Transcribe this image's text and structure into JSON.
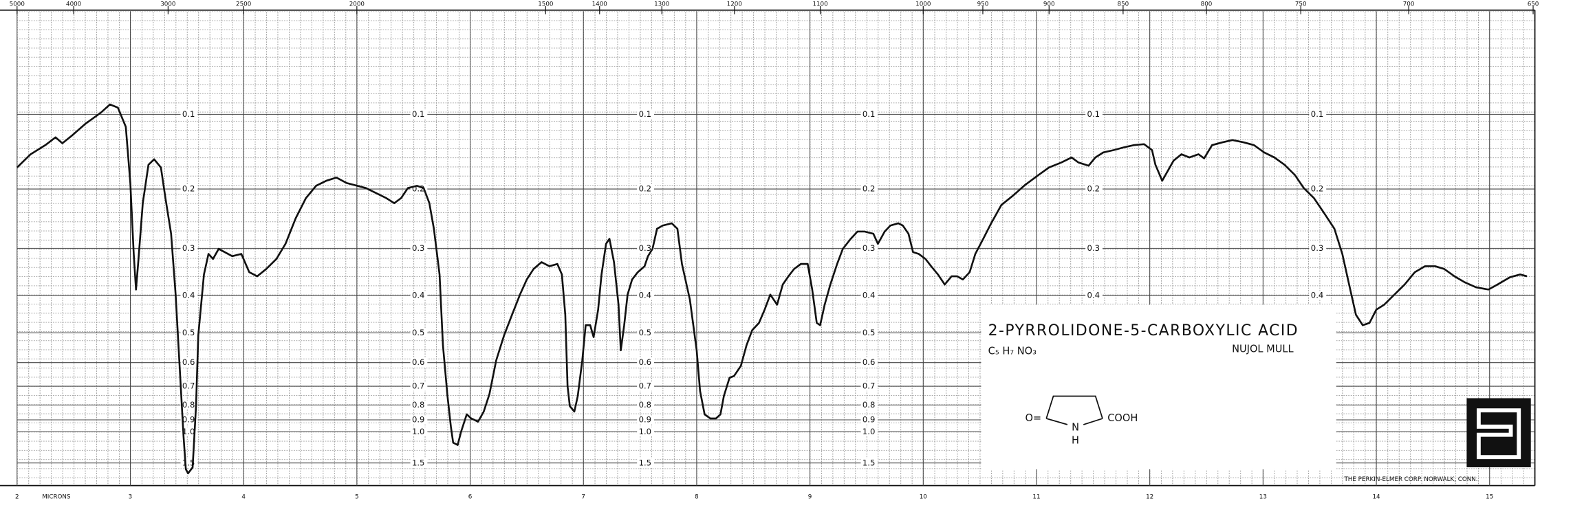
{
  "chart_data": {
    "type": "line",
    "title": "2-PYRROLIDONE-5-CARBOXYLIC ACID",
    "formula": "C₅ H₇ NO₃",
    "medium": "NUJOL MULL",
    "structure": {
      "carbonyl": "O=",
      "nitrogen": "N",
      "hydrogen": "H",
      "acid": "COOH"
    },
    "xlabel": "MICRONS",
    "credit": "THE PERKIN-ELMER CORP. NORWALK, CONN.",
    "color": "#111111",
    "grid": true,
    "xlim": [
      2,
      15.4
    ],
    "xticks": [
      2,
      3,
      4,
      5,
      6,
      7,
      8,
      9,
      10,
      11,
      12,
      13,
      14,
      15
    ],
    "x2scale": "wavenumber",
    "x2ticks": [
      5000,
      4000,
      3000,
      2500,
      2000,
      1500,
      1400,
      1300,
      1200,
      1100,
      1000,
      950,
      900,
      850,
      800,
      750,
      700,
      650
    ],
    "ylim": [
      0,
      100
    ],
    "y2scale": "absorbance",
    "y2ticks": [
      0.1,
      0.2,
      0.3,
      0.4,
      0.5,
      0.6,
      0.7,
      0.8,
      0.9,
      {
        "value": 1,
        "label": "1.0"
      },
      1.5
    ],
    "x": [
      2.0,
      2.12,
      2.25,
      2.34,
      2.4,
      2.49,
      2.6,
      2.74,
      2.82,
      2.89,
      2.96,
      3.0,
      3.03,
      3.05,
      3.07,
      3.11,
      3.16,
      3.21,
      3.27,
      3.31,
      3.36,
      3.4,
      3.44,
      3.47,
      3.49,
      3.51,
      3.55,
      3.58,
      3.6,
      3.65,
      3.69,
      3.73,
      3.78,
      3.9,
      3.98,
      4.05,
      4.12,
      4.2,
      4.29,
      4.37,
      4.46,
      4.55,
      4.64,
      4.73,
      4.82,
      4.91,
      5.08,
      5.26,
      5.33,
      5.39,
      5.45,
      5.53,
      5.59,
      5.64,
      5.68,
      5.73,
      5.76,
      5.8,
      5.83,
      5.85,
      5.89,
      5.92,
      5.97,
      6.01,
      6.07,
      6.12,
      6.17,
      6.23,
      6.3,
      6.37,
      6.44,
      6.5,
      6.56,
      6.63,
      6.7,
      6.77,
      6.81,
      6.84,
      6.86,
      6.88,
      6.92,
      6.95,
      6.99,
      7.02,
      7.06,
      7.09,
      7.13,
      7.16,
      7.2,
      7.23,
      7.27,
      7.31,
      7.33,
      7.36,
      7.39,
      7.43,
      7.48,
      7.54,
      7.57,
      7.61,
      7.65,
      7.7,
      7.78,
      7.83,
      7.87,
      7.94,
      8.0,
      8.03,
      8.07,
      8.12,
      8.17,
      8.21,
      8.24,
      8.29,
      8.33,
      8.39,
      8.44,
      8.49,
      8.55,
      8.6,
      8.65,
      8.71,
      8.76,
      8.81,
      8.86,
      8.92,
      8.98,
      9.02,
      9.06,
      9.09,
      9.13,
      9.18,
      9.24,
      9.29,
      9.36,
      9.42,
      9.48,
      9.56,
      9.6,
      9.66,
      9.71,
      9.78,
      9.82,
      9.87,
      9.91,
      9.96,
      10.02,
      10.07,
      10.13,
      10.19,
      10.25,
      10.3,
      10.35,
      10.41,
      10.46,
      10.53,
      10.6,
      10.69,
      10.8,
      10.9,
      11.02,
      11.11,
      11.22,
      11.31,
      11.37,
      11.46,
      11.52,
      11.59,
      11.68,
      11.77,
      11.86,
      11.95,
      12.02,
      12.05,
      12.11,
      12.16,
      12.21,
      12.28,
      12.35,
      12.43,
      12.48,
      12.55,
      12.64,
      12.73,
      12.83,
      12.92,
      13.01,
      13.1,
      13.19,
      13.28,
      13.36,
      13.45,
      13.54,
      13.63,
      13.7,
      13.76,
      13.82,
      13.88,
      13.94,
      14.0,
      14.07,
      14.16,
      14.25,
      14.34,
      14.43,
      14.52,
      14.6,
      14.69,
      14.78,
      14.88,
      14.99,
      15.07,
      15.18,
      15.27,
      15.33
    ],
    "values": [
      67.8,
      70.7,
      72.7,
      74.4,
      73.1,
      74.9,
      77.3,
      79.8,
      81.6,
      80.9,
      76.7,
      64.4,
      48.9,
      41.1,
      47.1,
      60.0,
      68.4,
      69.6,
      67.8,
      61.1,
      53.3,
      40.0,
      22.2,
      8.9,
      1.8,
      0.9,
      2.2,
      15.6,
      31.1,
      44.4,
      48.9,
      47.8,
      50.0,
      48.4,
      48.9,
      44.9,
      44.0,
      45.6,
      47.8,
      51.1,
      56.7,
      61.1,
      63.8,
      64.9,
      65.6,
      64.4,
      63.3,
      61.1,
      60.0,
      61.1,
      63.3,
      63.8,
      63.3,
      60.0,
      54.4,
      44.4,
      28.9,
      17.8,
      11.1,
      7.6,
      7.1,
      10.0,
      13.8,
      12.9,
      12.2,
      14.4,
      18.2,
      25.6,
      31.1,
      35.6,
      40.0,
      43.3,
      45.6,
      47.1,
      46.2,
      46.7,
      44.4,
      35.6,
      20.0,
      15.6,
      14.4,
      17.8,
      25.6,
      33.3,
      33.3,
      30.7,
      36.7,
      44.4,
      51.1,
      52.2,
      47.1,
      37.8,
      27.8,
      33.3,
      40.0,
      43.3,
      44.9,
      46.2,
      48.4,
      50.0,
      54.4,
      55.1,
      55.6,
      54.4,
      46.7,
      38.9,
      27.8,
      18.9,
      13.8,
      12.9,
      12.9,
      13.8,
      17.8,
      21.8,
      22.2,
      24.4,
      28.9,
      32.2,
      33.8,
      36.7,
      40.0,
      37.8,
      42.2,
      44.0,
      45.6,
      46.7,
      46.7,
      41.1,
      33.8,
      33.3,
      37.8,
      42.2,
      46.7,
      50.0,
      52.2,
      53.8,
      53.8,
      53.3,
      51.1,
      53.8,
      55.1,
      55.6,
      55.1,
      53.3,
      49.3,
      48.9,
      47.8,
      46.2,
      44.4,
      42.2,
      44.0,
      44.0,
      43.3,
      44.9,
      48.9,
      52.2,
      55.6,
      59.6,
      61.8,
      64.0,
      66.2,
      67.8,
      68.9,
      70.0,
      68.9,
      68.2,
      70.0,
      71.1,
      71.6,
      72.2,
      72.7,
      72.9,
      71.6,
      68.4,
      64.9,
      67.1,
      69.3,
      70.7,
      70.0,
      70.7,
      69.8,
      72.7,
      73.3,
      73.8,
      73.3,
      72.7,
      71.1,
      70.0,
      68.4,
      66.2,
      63.3,
      61.1,
      57.8,
      54.4,
      48.9,
      42.2,
      35.6,
      33.3,
      33.8,
      36.7,
      37.8,
      40.0,
      42.2,
      44.9,
      46.2,
      46.2,
      45.6,
      44.0,
      42.7,
      41.6,
      41.1,
      42.2,
      43.8,
      44.4,
      44.0
    ]
  }
}
